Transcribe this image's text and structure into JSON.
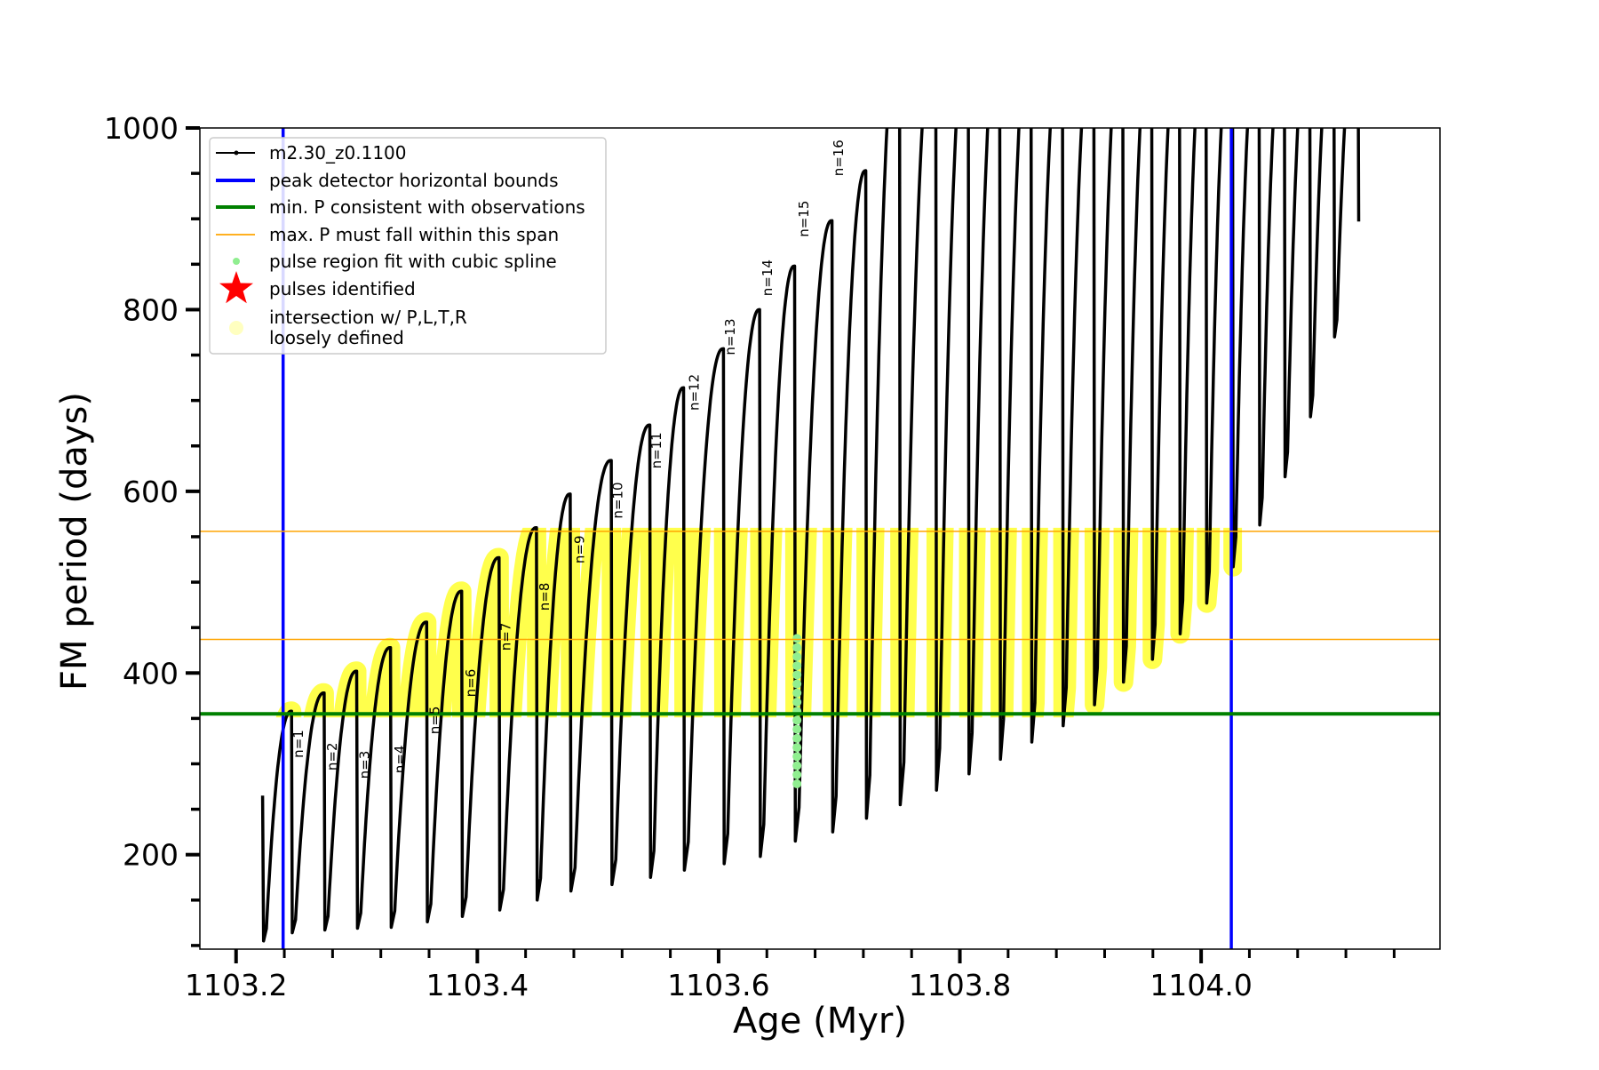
{
  "chart_data": {
    "type": "line",
    "xlabel": "Age (Myr)",
    "ylabel": "FM period (days)",
    "xlim": [
      1103.17,
      1104.198
    ],
    "ylim": [
      96,
      1000
    ],
    "xticks": [
      1103.2,
      1103.4,
      1103.6,
      1103.8,
      1104.0
    ],
    "xtick_labels": [
      "1103.2",
      "1103.4",
      "1103.6",
      "1103.8",
      "1104.0"
    ],
    "yticks": [
      200,
      400,
      600,
      800,
      1000
    ],
    "ytick_labels": [
      "200",
      "400",
      "600",
      "800",
      "1000"
    ],
    "grid": false,
    "legend_placement": "upper-left",
    "legend": [
      {
        "label": "m2.30_z0.1100",
        "kind": "line-marker",
        "color": "#000000"
      },
      {
        "label": "peak detector horizontal bounds",
        "kind": "line",
        "color": "#0000ff"
      },
      {
        "label": "min. P consistent with observations",
        "kind": "line",
        "color": "#008000"
      },
      {
        "label": "max. P must fall within this span",
        "kind": "thin-line",
        "color": "#ffa500"
      },
      {
        "label": "pulse region fit with cubic spline",
        "kind": "dot",
        "color": "#90ee90"
      },
      {
        "label": "pulses identified",
        "kind": "star",
        "color": "#ff0000"
      },
      {
        "label": "intersection w/ P,L,T,R",
        "label2": "loosely defined",
        "kind": "dot-big",
        "color": "#ffffc0"
      }
    ],
    "series_track": {
      "name": "m2.30_z0.1100",
      "start": {
        "age": 1103.222,
        "P_first": 265,
        "P_min": 105
      },
      "pulses": [
        {
          "n": 1,
          "age": 1103.246,
          "peak": 358,
          "min": 114
        },
        {
          "n": 2,
          "age": 1103.273,
          "peak": 378,
          "min": 117
        },
        {
          "n": 3,
          "age": 1103.3,
          "peak": 402,
          "min": 119
        },
        {
          "n": 4,
          "age": 1103.328,
          "peak": 428,
          "min": 120
        },
        {
          "n": 5,
          "age": 1103.358,
          "peak": 456,
          "min": 126
        },
        {
          "n": 6,
          "age": 1103.387,
          "peak": 490,
          "min": 132
        },
        {
          "n": 7,
          "age": 1103.418,
          "peak": 527,
          "min": 139
        },
        {
          "n": 8,
          "age": 1103.449,
          "peak": 560,
          "min": 150
        },
        {
          "n": 9,
          "age": 1103.477,
          "peak": 597,
          "min": 160
        },
        {
          "n": 10,
          "age": 1103.511,
          "peak": 634,
          "min": 167
        },
        {
          "n": 11,
          "age": 1103.543,
          "peak": 673,
          "min": 175
        },
        {
          "n": 12,
          "age": 1103.571,
          "peak": 714,
          "min": 183
        },
        {
          "n": 13,
          "age": 1103.604,
          "peak": 757,
          "min": 190
        },
        {
          "n": 14,
          "age": 1103.634,
          "peak": 800,
          "min": 198
        },
        {
          "n": 15,
          "age": 1103.663,
          "peak": 848,
          "min": 215
        },
        {
          "n": 16,
          "age": 1103.694,
          "peak": 898,
          "min": 225
        },
        {
          "n": 17,
          "age": 1103.722,
          "peak": 953,
          "min": 240
        },
        {
          "n": 18,
          "age": 1103.75,
          "peak": null,
          "min": 255
        },
        {
          "n": 19,
          "age": 1103.78,
          "peak": null,
          "min": 271
        },
        {
          "n": 20,
          "age": 1103.807,
          "peak": null,
          "min": 289
        },
        {
          "n": 21,
          "age": 1103.833,
          "peak": null,
          "min": 305
        },
        {
          "n": 22,
          "age": 1103.859,
          "peak": null,
          "min": 324
        },
        {
          "n": 23,
          "age": 1103.885,
          "peak": null,
          "min": 342
        },
        {
          "n": 24,
          "age": 1103.911,
          "peak": null,
          "min": 365
        },
        {
          "n": 25,
          "age": 1103.935,
          "peak": null,
          "min": 390
        },
        {
          "n": 26,
          "age": 1103.959,
          "peak": null,
          "min": 415
        },
        {
          "n": 27,
          "age": 1103.982,
          "peak": null,
          "min": 443
        },
        {
          "n": 28,
          "age": 1104.004,
          "peak": null,
          "min": 477
        },
        {
          "n": 29,
          "age": 1104.026,
          "peak": null,
          "min": 517
        },
        {
          "n": 30,
          "age": 1104.048,
          "peak": null,
          "min": 563
        },
        {
          "n": 31,
          "age": 1104.069,
          "peak": null,
          "min": 616
        },
        {
          "n": 32,
          "age": 1104.09,
          "peak": null,
          "min": 682
        },
        {
          "n": 33,
          "age": 1104.11,
          "peak": null,
          "min": 770
        },
        {
          "n": 34,
          "age": 1104.13,
          "peak": null,
          "min": 897
        }
      ]
    },
    "vlines_peak_detector_bounds": [
      1103.239,
      1104.025
    ],
    "hline_min_P": 355,
    "hlines_max_P_span": [
      437,
      556
    ],
    "spline_fit_points": {
      "age": 1103.665,
      "P_range": [
        278,
        440
      ]
    },
    "pulse_labels": [
      {
        "text": "n=1",
        "age": 1103.252,
        "P": 322
      },
      {
        "text": "n=2",
        "age": 1103.28,
        "P": 308
      },
      {
        "text": "n=3",
        "age": 1103.307,
        "P": 299
      },
      {
        "text": "n=4",
        "age": 1103.336,
        "P": 305
      },
      {
        "text": "n=5",
        "age": 1103.365,
        "P": 348
      },
      {
        "text": "n=6",
        "age": 1103.395,
        "P": 389
      },
      {
        "text": "n=7",
        "age": 1103.424,
        "P": 440
      },
      {
        "text": "n=8",
        "age": 1103.456,
        "P": 484
      },
      {
        "text": "n=9",
        "age": 1103.485,
        "P": 536
      },
      {
        "text": "n=10",
        "age": 1103.517,
        "P": 590
      },
      {
        "text": "n=11",
        "age": 1103.549,
        "P": 645
      },
      {
        "text": "n=12",
        "age": 1103.58,
        "P": 709
      },
      {
        "text": "n=13",
        "age": 1103.61,
        "P": 770
      },
      {
        "text": "n=14",
        "age": 1103.641,
        "P": 835
      },
      {
        "text": "n=15",
        "age": 1103.671,
        "P": 900
      },
      {
        "text": "n=16",
        "age": 1103.7,
        "P": 967
      }
    ]
  }
}
